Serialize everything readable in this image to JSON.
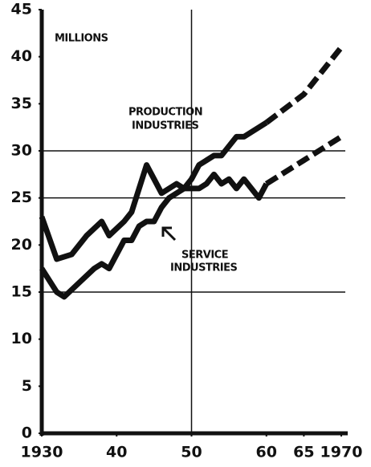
{
  "chart_data": {
    "type": "line",
    "xlim": [
      1930,
      1970
    ],
    "ylim": [
      0,
      45
    ],
    "yticks": [
      0,
      5,
      10,
      15,
      20,
      25,
      30,
      35,
      40,
      45
    ],
    "xticks": [
      1930,
      {
        "value": 1940,
        "label": "40"
      },
      {
        "value": 1950,
        "label": "50"
      },
      {
        "value": 1960,
        "label": "60"
      },
      {
        "value": 1965,
        "label": "65"
      },
      1970
    ],
    "grid_y": [
      15,
      25,
      30
    ],
    "grid_x": [
      1950
    ],
    "projection_start": 1960,
    "color": "#111111",
    "annotations": [
      {
        "text": [
          "MILLIONS"
        ]
      },
      {
        "text": [
          "PRODUCTION",
          "INDUSTRIES"
        ]
      },
      {
        "text": [
          "SERVICE",
          "INDUSTRIES"
        ]
      }
    ],
    "series": [
      {
        "x": [
          1930,
          1932,
          1933,
          1935,
          1937,
          1938,
          1939,
          1940,
          1941,
          1942,
          1943,
          1944,
          1945,
          1946,
          1947,
          1948,
          1949,
          1950,
          1951,
          1952,
          1953,
          1954,
          1955,
          1956,
          1957,
          1958,
          1960,
          1965,
          1970
        ],
        "values": [
          17.5,
          15,
          14.5,
          16,
          17.5,
          18,
          17.5,
          19,
          20.5,
          20.5,
          22,
          22.5,
          22.5,
          24,
          25,
          25.5,
          26,
          27,
          28.5,
          29,
          29.5,
          29.5,
          30.5,
          31.5,
          31.5,
          32,
          33,
          36,
          41
        ]
      },
      {
        "x": [
          1930,
          1932,
          1934,
          1936,
          1938,
          1939,
          1941,
          1942,
          1944,
          1945,
          1946,
          1947,
          1948,
          1949,
          1950,
          1951,
          1952,
          1953,
          1954,
          1955,
          1956,
          1957,
          1958,
          1959,
          1960,
          1965,
          1970
        ],
        "values": [
          23,
          18.5,
          19,
          21,
          22.5,
          21,
          22.5,
          23.5,
          28.5,
          27,
          25.5,
          26,
          26.5,
          26,
          26,
          26,
          26.5,
          27.5,
          26.5,
          27,
          26,
          27,
          26,
          25,
          26.5,
          29,
          31.5
        ]
      }
    ]
  }
}
